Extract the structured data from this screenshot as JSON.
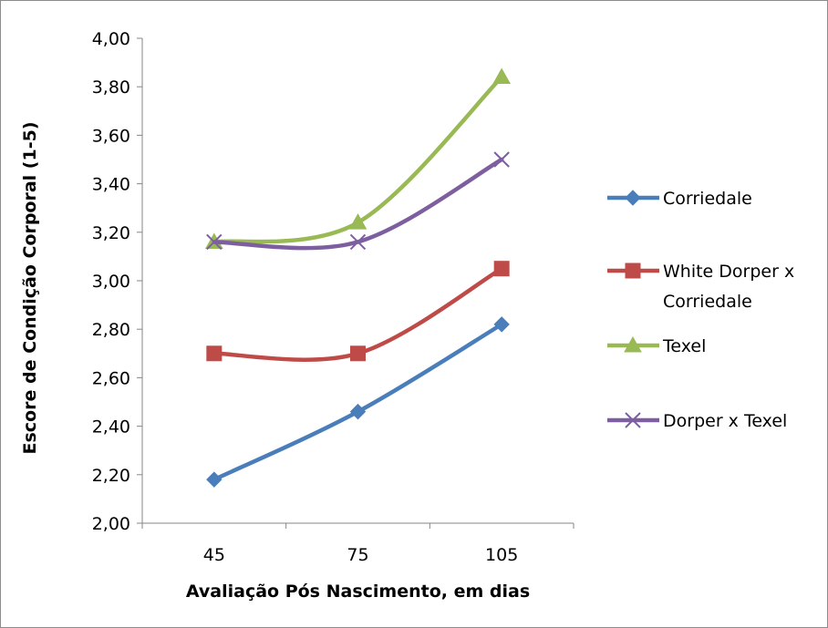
{
  "chart_data": {
    "type": "line",
    "title": "",
    "xlabel": "Avaliação Pós Nascimento, em dias",
    "ylabel": "Escore de Condição Corporal (1-5)",
    "categories": [
      "45",
      "75",
      "105"
    ],
    "ylim": [
      2.0,
      4.0
    ],
    "ytick_values": [
      2.0,
      2.2,
      2.4,
      2.6,
      2.8,
      3.0,
      3.2,
      3.4,
      3.6,
      3.8,
      4.0
    ],
    "ytick_labels": [
      "2,00",
      "2,20",
      "2,40",
      "2,60",
      "2,80",
      "3,00",
      "3,20",
      "3,40",
      "3,60",
      "3,80",
      "4,00"
    ],
    "grid": false,
    "smooth": true,
    "legend_position": "right",
    "series": [
      {
        "name": "Corriedale",
        "values": [
          2.18,
          2.46,
          2.82
        ],
        "color": "#4a7ebb",
        "marker": "diamond"
      },
      {
        "name": "White Dorper x Corriedale",
        "legend_lines": [
          "White Dorper x",
          "Corriedale"
        ],
        "values": [
          2.7,
          2.7,
          3.05
        ],
        "color": "#be4b48",
        "marker": "square"
      },
      {
        "name": "Texel",
        "values": [
          3.16,
          3.24,
          3.84
        ],
        "color": "#98b954",
        "marker": "triangle"
      },
      {
        "name": "Dorper x Texel",
        "values": [
          3.16,
          3.16,
          3.5
        ],
        "color": "#7d5fa0",
        "marker": "x"
      }
    ]
  }
}
